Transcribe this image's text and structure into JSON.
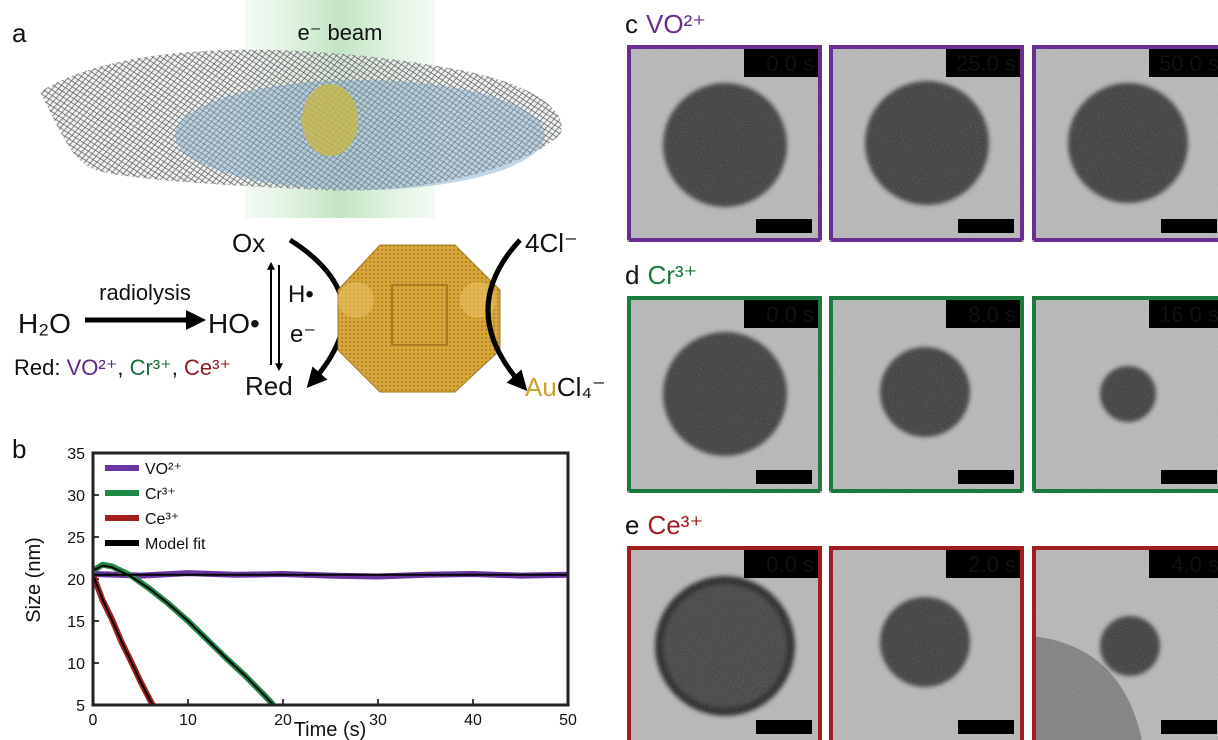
{
  "panel_a": {
    "label": "a",
    "beam_label": "e⁻ beam",
    "radiolysis": "radiolysis",
    "water": "H₂O",
    "radical": "HO•",
    "reductants_prefix": "Red: ",
    "separator": ", ",
    "reductants": [
      {
        "text": "VO²⁺",
        "color": "#5b2a86"
      },
      {
        "text": "Cr³⁺",
        "color": "#1b6b3a"
      },
      {
        "text": "Ce³⁺",
        "color": "#8e1b1f"
      }
    ],
    "ox": "Ox",
    "red": "Red",
    "h_radical": "H•",
    "electron": "e⁻",
    "chloride": "4Cl⁻",
    "gold": "Au",
    "gold_color": "#c9a227",
    "gold_complex": "Cl₄⁻"
  },
  "panel_b": {
    "label": "b"
  },
  "chart_data": {
    "type": "line",
    "x_label": "Time (s)",
    "y_label": "Size (nm)",
    "xlim": [
      0,
      50
    ],
    "xticks": [
      0,
      10,
      20,
      30,
      40,
      50
    ],
    "ylim": [
      5,
      35
    ],
    "yticks": [
      5,
      10,
      15,
      20,
      25,
      30,
      35
    ],
    "legend": "upper left",
    "series": [
      {
        "name": "VO²⁺",
        "color": "#6a35a0",
        "x": [
          0,
          5,
          10,
          15,
          20,
          25,
          30,
          35,
          40,
          45,
          50
        ],
        "values": [
          20.6,
          20.4,
          20.7,
          20.5,
          20.6,
          20.4,
          20.3,
          20.5,
          20.6,
          20.4,
          20.5
        ]
      },
      {
        "name": "Cr³⁺",
        "color": "#1e8a48",
        "x": [
          0,
          1,
          2,
          4,
          6,
          8,
          10,
          12,
          14,
          16,
          18,
          19
        ],
        "values": [
          21.0,
          21.7,
          21.5,
          20.4,
          18.8,
          17.0,
          15.0,
          12.8,
          10.6,
          8.5,
          6.2,
          5.0
        ]
      },
      {
        "name": "Ce³⁺",
        "color": "#a3201f",
        "x": [
          0,
          1,
          2,
          3,
          4,
          5,
          6,
          6.3
        ],
        "values": [
          20.5,
          17.5,
          15.2,
          12.5,
          10.2,
          7.8,
          5.6,
          5.0
        ]
      },
      {
        "name": "Model fit",
        "color": "#000000",
        "x": [
          0,
          50,
          50,
          0,
          1,
          2,
          4,
          6,
          8,
          10,
          12,
          14,
          16,
          18,
          19,
          19,
          0,
          1,
          2,
          3,
          4,
          5,
          6,
          6.3
        ],
        "values": [
          20.5,
          20.5,
          null,
          21.0,
          21.6,
          21.4,
          20.3,
          18.8,
          17.0,
          15.0,
          12.8,
          10.6,
          8.5,
          6.2,
          5.0,
          null,
          20.5,
          17.6,
          15.1,
          12.6,
          10.2,
          7.8,
          5.6,
          5.0
        ]
      }
    ]
  },
  "tem_panels": [
    {
      "label": "c",
      "ion": "VO²⁺",
      "color": "#6a2e91",
      "frames": [
        "0.0 s",
        "25.0 s",
        "50.0 s"
      ]
    },
    {
      "label": "d",
      "ion": "Cr³⁺",
      "color": "#1b7a3e",
      "frames": [
        "0.0 s",
        "8.0 s",
        "16.0 s"
      ]
    },
    {
      "label": "e",
      "ion": "Ce³⁺",
      "color": "#a11d21",
      "frames": [
        "0.0 s",
        "2.0 s",
        "4.0 s"
      ]
    }
  ]
}
